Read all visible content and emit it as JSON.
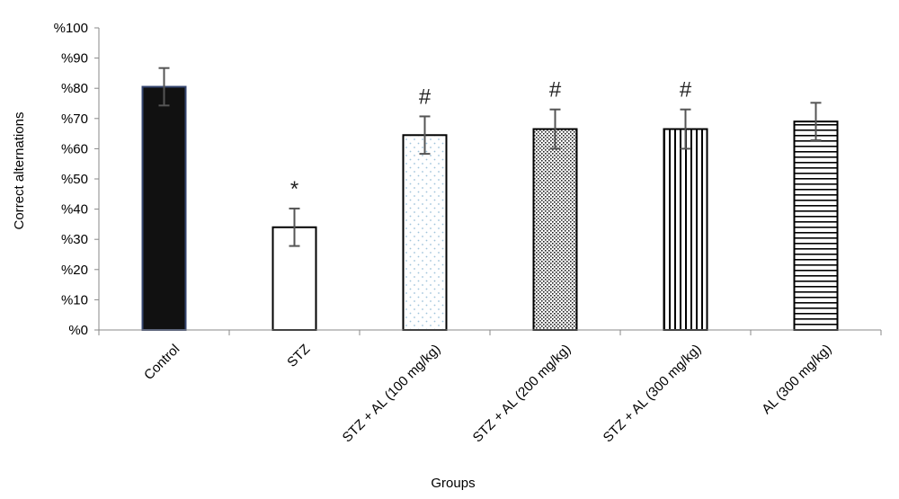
{
  "chart_data": {
    "type": "bar",
    "categories": [
      "Control",
      "STZ",
      "STZ + AL (100 mg/kg)",
      "STZ + AL (200 mg/kg)",
      "STZ + AL (300 mg/kg)",
      "AL (300 mg/kg)"
    ],
    "values": [
      80.5,
      34,
      64.5,
      66.5,
      66.5,
      69
    ],
    "errors": [
      6.2,
      6.2,
      6.2,
      6.5,
      6.5,
      6.2
    ],
    "annotations": [
      "",
      "*",
      "#",
      "#",
      "#",
      ""
    ],
    "fills": [
      "solid-black",
      "white",
      "light-dots",
      "dense-dots",
      "vertical-lines",
      "horizontal-lines"
    ],
    "title": "",
    "xlabel": "Groups",
    "ylabel": "Correct alternations",
    "ylim": [
      0,
      100
    ],
    "yticks": [
      0,
      10,
      20,
      30,
      40,
      50,
      60,
      70,
      80,
      90,
      100
    ],
    "ytick_labels": [
      "%0",
      "%10",
      "%20",
      "%30",
      "%40",
      "%50",
      "%60",
      "%70",
      "%80",
      "%90",
      "%100"
    ],
    "grid": false,
    "legend": "none",
    "colors": {
      "control_fill": "#111111",
      "control_border": "#34456f",
      "bar_border": "#000000",
      "dot_light": "#9fc4dc",
      "error_bar": "#555555",
      "axis": "#888888"
    }
  }
}
